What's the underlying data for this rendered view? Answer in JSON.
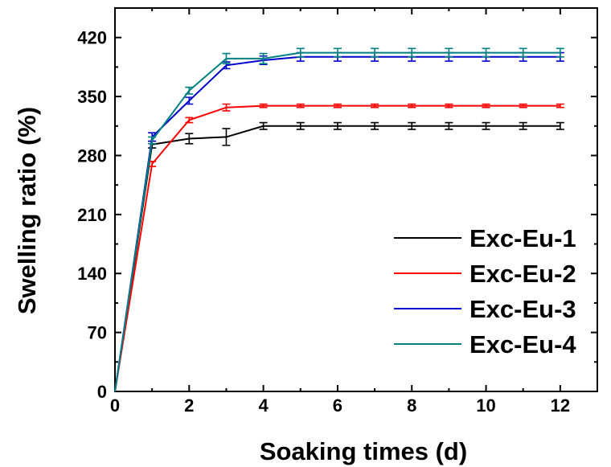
{
  "chart_data": {
    "type": "line",
    "title": "",
    "xlabel": "Soaking times (d)",
    "ylabel": "Swelling ratio (%)",
    "xlim": [
      0,
      13
    ],
    "ylim": [
      0,
      455
    ],
    "x_ticks": [
      0,
      2,
      4,
      6,
      8,
      10,
      12
    ],
    "y_ticks": [
      0,
      70,
      140,
      210,
      280,
      350,
      420
    ],
    "x_minor_ticks": [
      1,
      3,
      5,
      7,
      9,
      11
    ],
    "y_minor_ticks": [
      35,
      105,
      175,
      245,
      315,
      385
    ],
    "x": [
      0,
      1,
      2,
      3,
      4,
      5,
      6,
      7,
      8,
      9,
      10,
      11,
      12
    ],
    "legend_position": "right",
    "series": [
      {
        "name": "Exc-Eu-1",
        "color": "#000000",
        "values": [
          0,
          293,
          300,
          302,
          315,
          315,
          315,
          315,
          315,
          315,
          315,
          315,
          315
        ],
        "errors": [
          0,
          4,
          6,
          10,
          4,
          4,
          4,
          4,
          4,
          4,
          4,
          4,
          4
        ]
      },
      {
        "name": "Exc-Eu-2",
        "color": "#ff0000",
        "values": [
          0,
          270,
          322,
          337,
          339,
          339,
          339,
          339,
          339,
          339,
          339,
          339,
          339
        ],
        "errors": [
          0,
          3,
          3,
          4,
          2,
          2,
          2,
          2,
          2,
          2,
          2,
          2,
          2
        ]
      },
      {
        "name": "Exc-Eu-3",
        "color": "#0000cc",
        "values": [
          0,
          302,
          345,
          387,
          393,
          397,
          397,
          397,
          397,
          397,
          397,
          397,
          397
        ],
        "errors": [
          0,
          5,
          4,
          4,
          5,
          5,
          5,
          5,
          5,
          5,
          5,
          5,
          5
        ]
      },
      {
        "name": "Exc-Eu-4",
        "color": "#008080",
        "values": [
          0,
          298,
          357,
          395,
          395,
          402,
          402,
          402,
          402,
          402,
          402,
          402,
          402
        ],
        "errors": [
          0,
          4,
          4,
          6,
          6,
          5,
          5,
          5,
          5,
          5,
          5,
          5,
          5
        ]
      }
    ]
  }
}
